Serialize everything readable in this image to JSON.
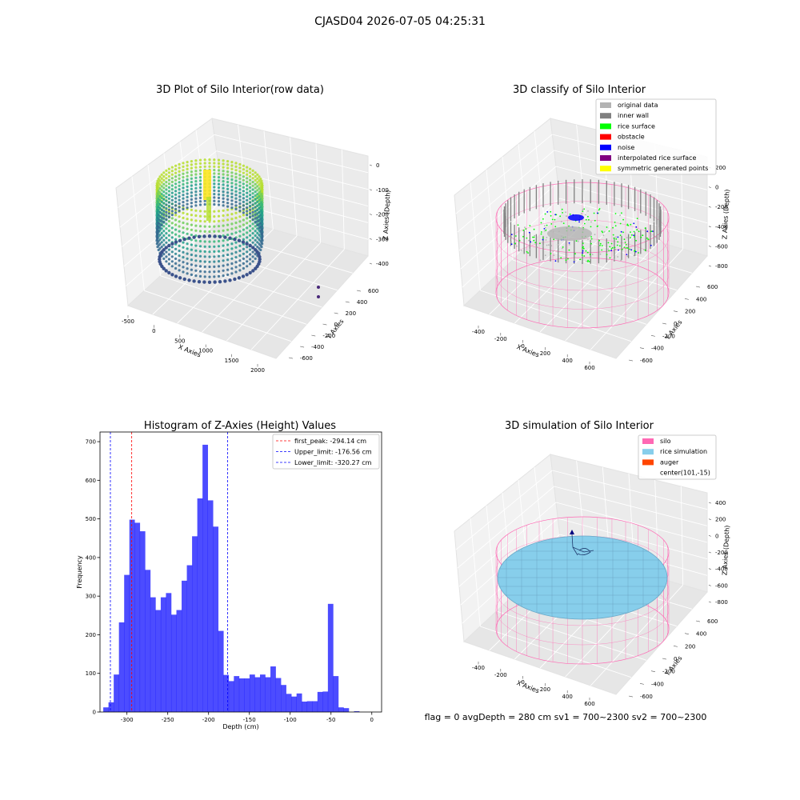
{
  "suptitle": "CJASD04 2026-07-05 04:25:31",
  "footer": "flag = 0     avgDepth = 280 cm  sv1 = 700~2300  sv2 = 700~2300",
  "panels": {
    "raw": {
      "title": "3D Plot of Silo Interior(row data)",
      "xlabel": "X Axies",
      "ylabel": "Y Axies",
      "zlabel": "Z Axies (Depth)",
      "xticks": [
        "-500",
        "0",
        "500",
        "1000",
        "1500",
        "2000"
      ],
      "yticks": [
        "-600",
        "-400",
        "-200",
        "0",
        "200",
        "400",
        "600"
      ],
      "zticks": [
        "0",
        "-100",
        "-200",
        "-300",
        "-400"
      ],
      "colormap": "viridis"
    },
    "classify": {
      "title": "3D classify of Silo Interior",
      "xlabel": "X Axies",
      "ylabel": "Y Axies",
      "zlabel": "Z Axies (Depth)",
      "xticks": [
        "-400",
        "-200",
        "0",
        "200",
        "400",
        "600"
      ],
      "yticks": [
        "-600",
        "-400",
        "-200",
        "0",
        "200",
        "400",
        "600"
      ],
      "zticks": [
        "200",
        "0",
        "-200",
        "-400",
        "-600",
        "-800"
      ],
      "legend": [
        {
          "label": "original data",
          "color": "#b3b3b3"
        },
        {
          "label": "inner wall",
          "color": "#808080"
        },
        {
          "label": "rice surface",
          "color": "#00ff00"
        },
        {
          "label": "obstacle",
          "color": "#ff0000"
        },
        {
          "label": "noise",
          "color": "#0000ff"
        },
        {
          "label": "interpolated rice surface",
          "color": "#800080"
        },
        {
          "label": "symmetric generated points",
          "color": "#ffff00"
        }
      ]
    },
    "simulation": {
      "title": "3D simulation of Silo Interior",
      "xlabel": "X Axies",
      "ylabel": "Y Axies",
      "zlabel": "Z Axies (Depth)",
      "xticks": [
        "-400",
        "-200",
        "0",
        "200",
        "400",
        "600"
      ],
      "yticks": [
        "-600",
        "-400",
        "-200",
        "0",
        "200",
        "400",
        "600"
      ],
      "zticks": [
        "400",
        "200",
        "0",
        "-200",
        "-400",
        "-600",
        "-800"
      ],
      "legend": [
        {
          "label": "silo",
          "color": "#ff69b4"
        },
        {
          "label": "rice simulation",
          "color": "#87ceeb"
        },
        {
          "label": "auger",
          "color": "#ff4500"
        },
        {
          "label": "center(101,-15)",
          "color": ""
        }
      ]
    }
  },
  "chart_data": {
    "type": "bar",
    "title": "Histogram of Z-Axies (Height) Values",
    "xlabel": "Depth (cm)",
    "ylabel": "Frequency",
    "xlim": [
      -333,
      12
    ],
    "ylim": [
      0,
      725
    ],
    "xticks": [
      -300,
      -250,
      -200,
      -150,
      -100,
      -50,
      0
    ],
    "yticks": [
      0,
      100,
      200,
      300,
      400,
      500,
      600,
      700
    ],
    "bins": {
      "start": -329,
      "width": 6.4,
      "counts": [
        12,
        25,
        97,
        232,
        355,
        498,
        490,
        468,
        368,
        297,
        264,
        297,
        308,
        252,
        264,
        340,
        380,
        455,
        553,
        692,
        548,
        480,
        210,
        96,
        80,
        93,
        87,
        87,
        97,
        90,
        97,
        90,
        118,
        88,
        70,
        47,
        40,
        48,
        27,
        28,
        28,
        52,
        53,
        280,
        93,
        12,
        10,
        0,
        2,
        0
      ]
    },
    "bar_color": "#0000ff",
    "vlines": [
      {
        "label": "first_peak: -294.14 cm",
        "x": -294.14,
        "color": "#ff0000"
      },
      {
        "label": "Upper_limit: -176.56 cm",
        "x": -176.56,
        "color": "#0000ff"
      },
      {
        "label": "Lower_limit: -320.27 cm",
        "x": -320.27,
        "color": "#0000ff"
      }
    ]
  }
}
